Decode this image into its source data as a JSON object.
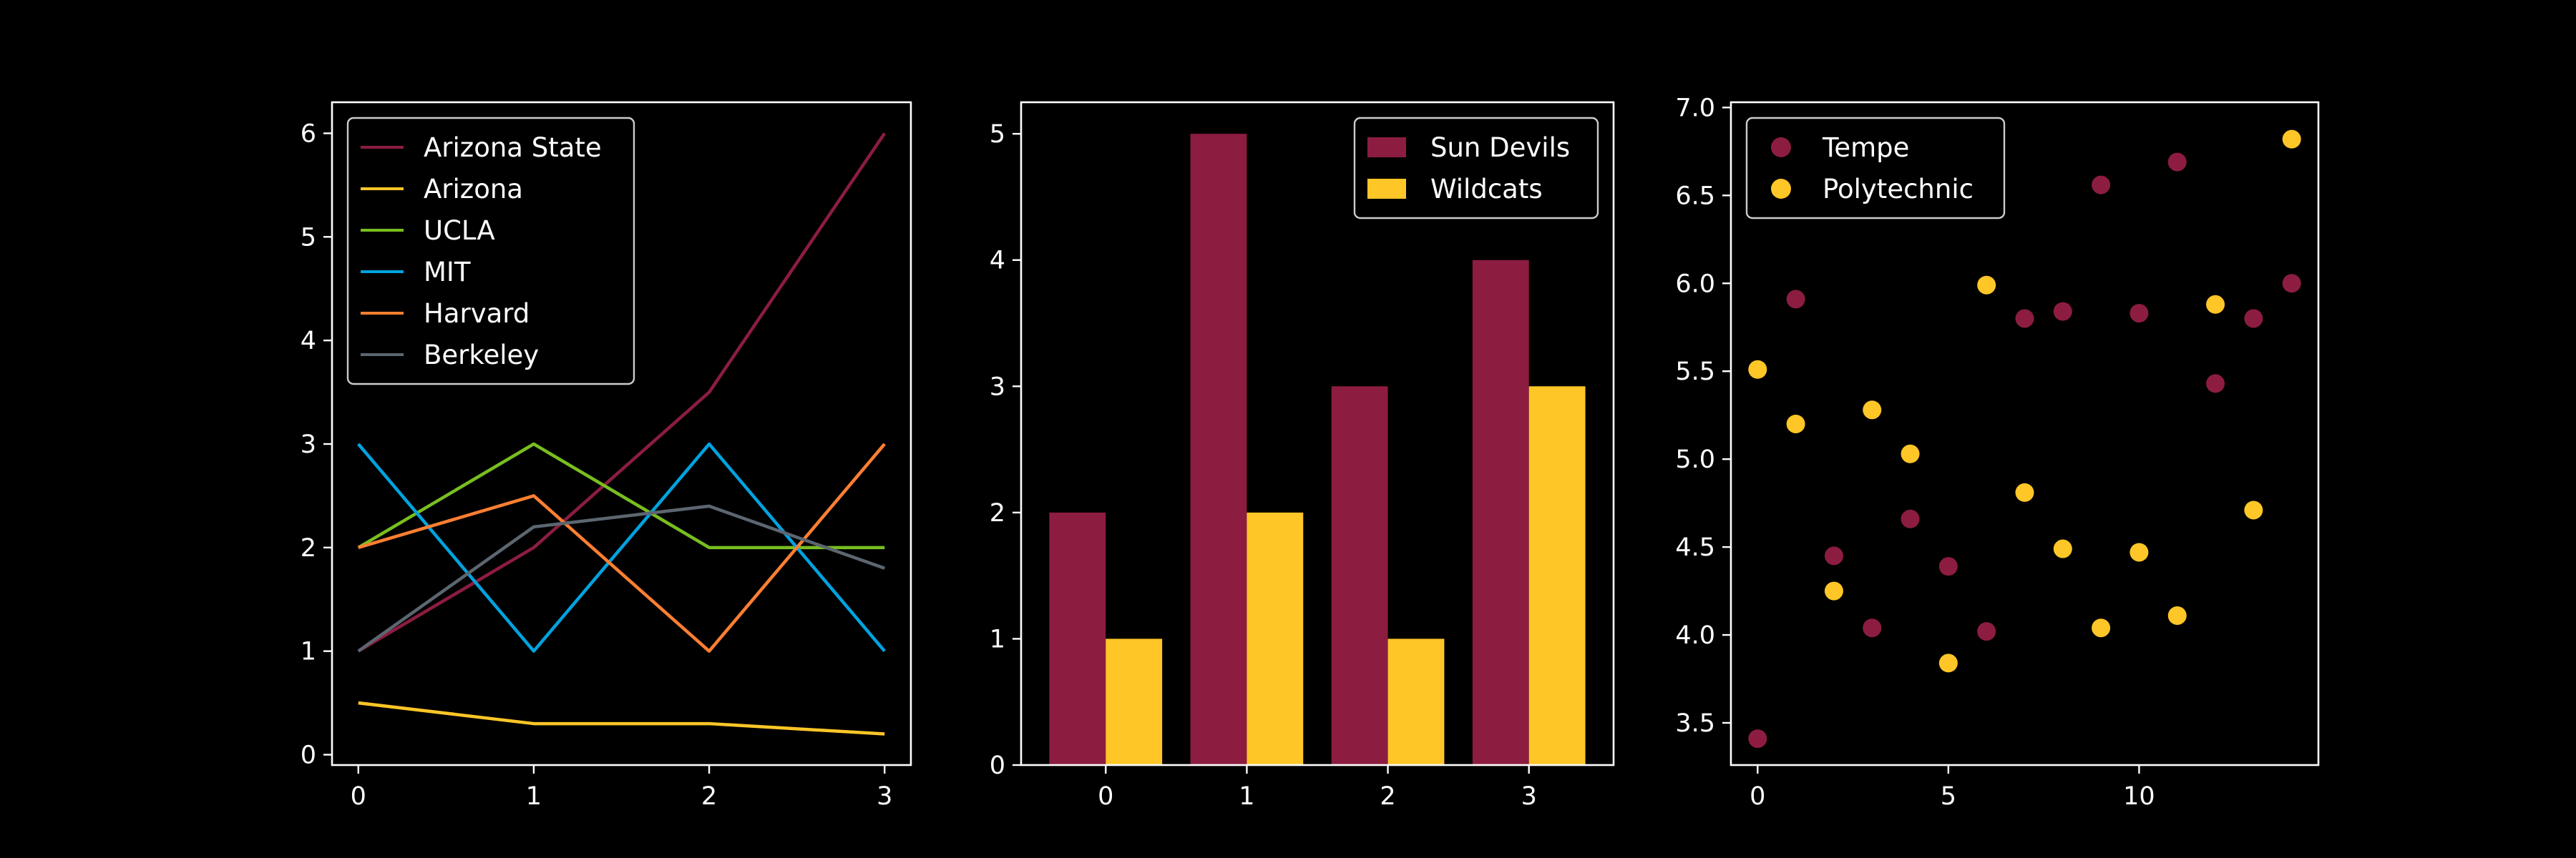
{
  "colors": {
    "background": "#000000",
    "axes": "#ffffff",
    "text": "#ffffff",
    "legend_edge": "#cccccc"
  },
  "chart_data": [
    {
      "type": "line",
      "title": "",
      "xlabel": "",
      "ylabel": "",
      "x": [
        0,
        1,
        2,
        3
      ],
      "xlim": [
        -0.15,
        3.15
      ],
      "ylim": [
        -0.1,
        6.3
      ],
      "xticks": [
        0,
        1,
        2,
        3
      ],
      "yticks": [
        0,
        1,
        2,
        3,
        4,
        5,
        6
      ],
      "grid": false,
      "legend_position": "upper-left",
      "series": [
        {
          "name": "Arizona State",
          "color": "#8c1d40",
          "values": [
            1,
            2,
            3.5,
            6
          ]
        },
        {
          "name": "Arizona",
          "color": "#ffc627",
          "values": [
            0.5,
            0.3,
            0.3,
            0.2
          ]
        },
        {
          "name": "UCLA",
          "color": "#78be20",
          "values": [
            2,
            3,
            2,
            2
          ]
        },
        {
          "name": "MIT",
          "color": "#00a3e0",
          "values": [
            3,
            1,
            3,
            1
          ]
        },
        {
          "name": "Harvard",
          "color": "#ff7f32",
          "values": [
            2,
            2.5,
            1,
            3
          ]
        },
        {
          "name": "Berkeley",
          "color": "#5c6670",
          "values": [
            1,
            2.2,
            2.4,
            1.8
          ]
        }
      ]
    },
    {
      "type": "bar",
      "title": "",
      "xlabel": "",
      "ylabel": "",
      "categories": [
        "0",
        "1",
        "2",
        "3"
      ],
      "ylim": [
        0,
        5.25
      ],
      "xlim": [
        -0.6,
        3.6
      ],
      "yticks": [
        0,
        1,
        2,
        3,
        4,
        5
      ],
      "grid": false,
      "legend_position": "upper-right",
      "series": [
        {
          "name": "Sun Devils",
          "color": "#8c1d40",
          "values": [
            2,
            5,
            3,
            4
          ]
        },
        {
          "name": "Wildcats",
          "color": "#ffc627",
          "values": [
            1,
            2,
            1,
            3
          ]
        }
      ]
    },
    {
      "type": "scatter",
      "title": "",
      "xlabel": "",
      "ylabel": "",
      "xlim": [
        -0.7,
        14.7
      ],
      "ylim": [
        3.26,
        7.03
      ],
      "xticks": [
        0,
        5,
        10
      ],
      "yticks": [
        3.5,
        4.0,
        4.5,
        5.0,
        5.5,
        6.0,
        6.5,
        7.0
      ],
      "ytick_labels": [
        "3.5",
        "4.0",
        "4.5",
        "5.0",
        "5.5",
        "6.0",
        "6.5",
        "7.0"
      ],
      "grid": false,
      "legend_position": "upper-left",
      "series": [
        {
          "name": "Tempe",
          "color": "#8c1d40",
          "x": [
            0,
            1,
            2,
            3,
            4,
            5,
            6,
            7,
            8,
            9,
            10,
            11,
            12,
            13,
            14
          ],
          "y": [
            3.41,
            5.91,
            4.45,
            4.04,
            4.66,
            4.39,
            4.02,
            5.8,
            5.84,
            6.56,
            5.83,
            6.69,
            5.43,
            5.8,
            6.0
          ]
        },
        {
          "name": "Polytechnic",
          "color": "#ffc627",
          "x": [
            0,
            1,
            2,
            3,
            4,
            5,
            6,
            7,
            8,
            9,
            10,
            11,
            12,
            13,
            14
          ],
          "y": [
            5.51,
            5.2,
            4.25,
            5.28,
            5.03,
            3.84,
            5.99,
            4.81,
            4.49,
            4.04,
            4.47,
            4.11,
            5.88,
            4.71,
            6.82
          ]
        }
      ]
    }
  ]
}
